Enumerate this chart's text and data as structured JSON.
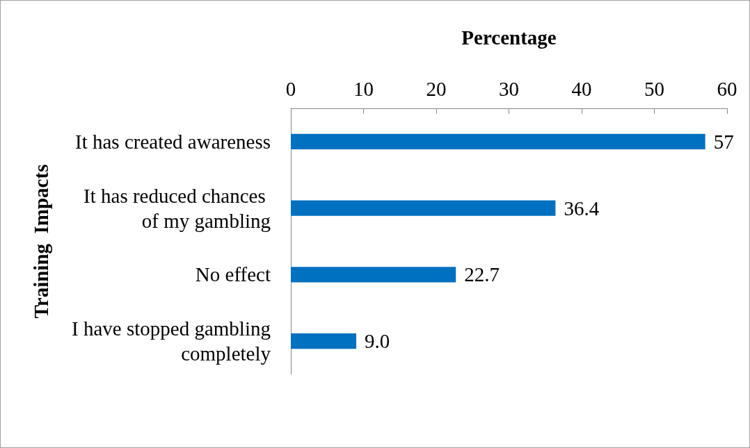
{
  "chart_data": {
    "type": "bar",
    "orientation": "horizontal",
    "xlabel": "Percentage",
    "ylabel": "Training  Impacts",
    "categories": [
      "It has created awareness",
      "It has reduced chances of my gambling",
      "No effect",
      "I have stopped gambling completely"
    ],
    "values": [
      57,
      36.4,
      22.7,
      9.0
    ],
    "value_labels": [
      "57",
      "36.4",
      "22.7",
      "9.0"
    ],
    "color": "#0070c0",
    "xlim": [
      0,
      60
    ],
    "xticks": [
      0,
      10,
      20,
      30,
      40,
      50,
      60
    ],
    "grid": false
  }
}
